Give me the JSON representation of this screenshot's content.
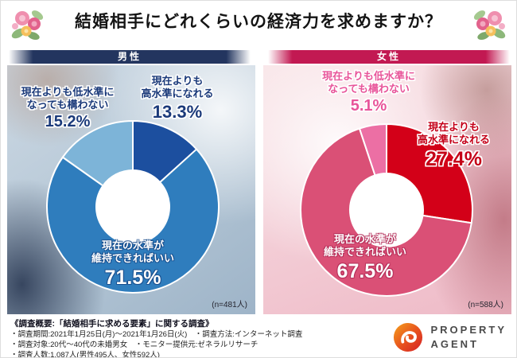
{
  "title": "結婚相手にどれくらいの経済力を求めますか？",
  "chart_data": [
    {
      "type": "donut",
      "group": "男性",
      "n": 481,
      "n_label": "(n=481人)",
      "unit": "%",
      "slices": [
        {
          "label": "現在よりも高水準になれる",
          "label_line1": "現在よりも",
          "label_line2": "高水準になれる",
          "value": 13.3,
          "pct": "13.3%",
          "color": "#1c4f9f"
        },
        {
          "label": "現在の水準が維持できればいい",
          "label_line1": "現在の水準が",
          "label_line2": "維持できればいい",
          "value": 71.5,
          "pct": "71.5%",
          "color": "#2f7dbd"
        },
        {
          "label": "現在よりも低水準になっても構わない",
          "label_line1": "現在よりも低水準に",
          "label_line2": "なっても構わない",
          "value": 15.2,
          "pct": "15.2%",
          "color": "#7db4d8"
        }
      ]
    },
    {
      "type": "donut",
      "group": "女性",
      "n": 588,
      "n_label": "(n=588人)",
      "unit": "%",
      "slices": [
        {
          "label": "現在よりも高水準になれる",
          "label_line1": "現在よりも",
          "label_line2": "高水準になれる",
          "value": 27.4,
          "pct": "27.4%",
          "color": "#d30018"
        },
        {
          "label": "現在の水準が維持できればいい",
          "label_line1": "現在の水準が",
          "label_line2": "維持できればいい",
          "value": 67.5,
          "pct": "67.5%",
          "color": "#da5076"
        },
        {
          "label": "現在よりも低水準になっても構わない",
          "label_line1": "現在よりも低水準に",
          "label_line2": "なっても構わない",
          "value": 5.1,
          "pct": "5.1%",
          "color": "#ec6fa4"
        }
      ]
    }
  ],
  "footer": {
    "survey_title": "《調査概要:「結婚相手に求める要素」に関する調査》",
    "lines": [
      "・調査期間:2021年1月25日(月)〜2021年1月26日(火)　・調査方法:インターネット調査",
      "・調査対象:20代〜40代の未婚男女　・モニター提供元:ゼネラルリサーチ",
      "・調査人数:1,087人(男性495人、女性592人)"
    ],
    "logo": {
      "line1": "PROPERTY",
      "line2": "AGENT"
    }
  },
  "colors": {
    "men_bar": "#23355f",
    "women_bar": "#c21952",
    "men_label_text": "#1b3a7a",
    "women_red_text": "#c40018",
    "women_pink_text": "#e8559a",
    "logo_orange": "#e8551e"
  }
}
